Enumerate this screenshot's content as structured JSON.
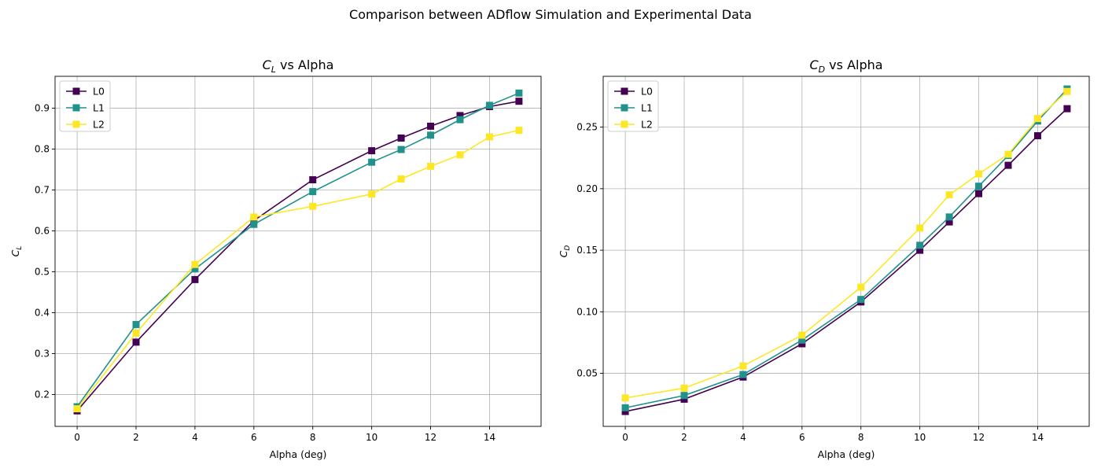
{
  "figure": {
    "title": "Comparison between ADflow Simulation and Experimental Data"
  },
  "colors": {
    "L0": "#440154",
    "L1": "#21918c",
    "L2": "#fde725",
    "grid": "#b0b0b0",
    "axis": "#000000"
  },
  "chart_data": [
    {
      "type": "line",
      "title_main": "C",
      "title_sub": "L",
      "title_rest": " vs Alpha",
      "xlabel": "Alpha (deg)",
      "ylabel_main": "C",
      "ylabel_sub": "L",
      "xlim": [
        -0.75,
        15.75
      ],
      "ylim": [
        0.122,
        0.978
      ],
      "xticks": [
        0,
        2,
        4,
        6,
        8,
        10,
        12,
        14
      ],
      "xtick_labels": [
        "0",
        "2",
        "4",
        "6",
        "8",
        "10",
        "12",
        "14"
      ],
      "yticks": [
        0.2,
        0.3,
        0.4,
        0.5,
        0.6,
        0.7,
        0.8,
        0.9
      ],
      "ytick_labels": [
        "0.2",
        "0.3",
        "0.4",
        "0.5",
        "0.6",
        "0.7",
        "0.8",
        "0.9"
      ],
      "grid": true,
      "legend": "upper-left",
      "x": [
        0,
        2,
        4,
        6,
        8,
        10,
        11,
        12,
        13,
        14,
        15
      ],
      "series": [
        {
          "name": "L0",
          "values": [
            0.16,
            0.328,
            0.481,
            0.625,
            0.725,
            0.796,
            0.827,
            0.856,
            0.882,
            0.904,
            0.917
          ]
        },
        {
          "name": "L1",
          "values": [
            0.17,
            0.371,
            0.507,
            0.616,
            0.696,
            0.768,
            0.799,
            0.834,
            0.872,
            0.907,
            0.937
          ]
        },
        {
          "name": "L2",
          "values": [
            0.165,
            0.35,
            0.518,
            0.634,
            0.66,
            0.69,
            0.727,
            0.758,
            0.786,
            0.83,
            0.846
          ]
        }
      ]
    },
    {
      "type": "line",
      "title_main": "C",
      "title_sub": "D",
      "title_rest": " vs Alpha",
      "xlabel": "Alpha (deg)",
      "ylabel_main": "C",
      "ylabel_sub": "D",
      "xlim": [
        -0.75,
        15.75
      ],
      "ylim": [
        0.0069,
        0.2913
      ],
      "xticks": [
        0,
        2,
        4,
        6,
        8,
        10,
        12,
        14
      ],
      "xtick_labels": [
        "0",
        "2",
        "4",
        "6",
        "8",
        "10",
        "12",
        "14"
      ],
      "yticks": [
        0.05,
        0.1,
        0.15,
        0.2,
        0.25
      ],
      "ytick_labels": [
        "0.05",
        "0.10",
        "0.15",
        "0.20",
        "0.25"
      ],
      "grid": true,
      "legend": "upper-left",
      "x": [
        0,
        2,
        4,
        6,
        8,
        10,
        11,
        12,
        13,
        14,
        15
      ],
      "series": [
        {
          "name": "L0",
          "values": [
            0.019,
            0.029,
            0.047,
            0.074,
            0.108,
            0.15,
            0.173,
            0.196,
            0.219,
            0.243,
            0.265
          ]
        },
        {
          "name": "L1",
          "values": [
            0.022,
            0.032,
            0.049,
            0.077,
            0.11,
            0.154,
            0.177,
            0.202,
            0.227,
            0.255,
            0.281
          ]
        },
        {
          "name": "L2",
          "values": [
            0.03,
            0.038,
            0.056,
            0.081,
            0.12,
            0.168,
            0.195,
            0.212,
            0.228,
            0.257,
            0.279
          ]
        }
      ]
    }
  ]
}
